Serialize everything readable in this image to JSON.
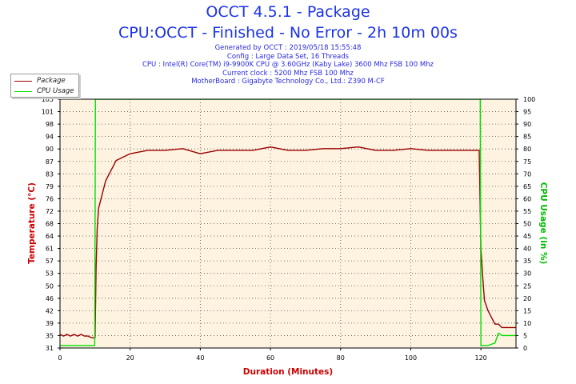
{
  "header": {
    "title": "OCCT 4.5.1 - Package",
    "subtitle": "CPU:OCCT - Finished - No Error - 2h 10m 00s",
    "info_lines": [
      "Generated by OCCT : 2019/05/18 15:55:48",
      "Config : Large Data Set, 16 Threads",
      "CPU : Intel(R) Core(TM) i9-9900K CPU @ 3.60GHz (Kaby Lake) 3600 Mhz FSB 100 Mhz",
      "Current clock : 5200 Mhz FSB 100 Mhz",
      "MotherBoard : Gigabyte Technology Co., Ltd.: Z390 M-CF"
    ]
  },
  "colors": {
    "title": "#1b33e6",
    "info": "#2a2ae0",
    "package": "#9b0000",
    "cpu_usage": "#00e000",
    "plot_bg": "#fdf3e0",
    "y_left_label": "#cc0000",
    "y_right_label": "#00bb00",
    "x_label": "#cc0000"
  },
  "chart_data": {
    "type": "line",
    "xlabel": "Duration (Minutes)",
    "ylabel_left": "Temperature (°C)",
    "ylabel_right": "CPU Usage (in %)",
    "xlim": [
      0,
      130
    ],
    "ylim_left": [
      31,
      104
    ],
    "ylim_right": [
      0,
      100
    ],
    "x_ticks": [
      "0",
      "20",
      "40",
      "60",
      "80",
      "100",
      "120"
    ],
    "y_left_ticks": [
      "31",
      "35",
      "39",
      "42",
      "46",
      "50",
      "53",
      "57",
      "61",
      "64",
      "68",
      "72",
      "76",
      "79",
      "83",
      "87",
      "90",
      "94",
      "98",
      "101",
      "105"
    ],
    "y_right_ticks": [
      "0",
      "5",
      "10",
      "15",
      "20",
      "25",
      "30",
      "35",
      "40",
      "45",
      "50",
      "55",
      "60",
      "65",
      "70",
      "75",
      "80",
      "85",
      "90",
      "95",
      "100"
    ],
    "grid": true,
    "legend_position": "top-left",
    "series": [
      {
        "name": "Package",
        "axis": "left",
        "x": [
          0,
          1,
          2,
          3,
          4,
          5,
          6,
          7,
          8,
          9,
          10,
          10.3,
          10.6,
          11,
          12,
          13,
          14,
          16,
          18,
          20,
          25,
          30,
          35,
          40,
          45,
          50,
          55,
          60,
          65,
          70,
          75,
          80,
          85,
          90,
          95,
          100,
          105,
          110,
          115,
          119.5,
          120,
          120.5,
          121,
          122,
          123,
          124,
          125,
          126,
          127,
          128,
          129,
          130
        ],
        "values": [
          35,
          34.5,
          35,
          34.5,
          35,
          34.5,
          35,
          34.5,
          34.5,
          34,
          34,
          55,
          66,
          72,
          76,
          80,
          82,
          86,
          87,
          88,
          89,
          89,
          89.5,
          88,
          89,
          89,
          89,
          90,
          89,
          89,
          89.5,
          89.5,
          90,
          89,
          89,
          89.5,
          89,
          89,
          89,
          89,
          60,
          52,
          45,
          42,
          40,
          38,
          38,
          37,
          37,
          37,
          37,
          37
        ]
      },
      {
        "name": "CPU Usage",
        "axis": "right",
        "x": [
          0,
          5,
          9.9,
          10,
          10.1,
          50,
          100,
          119.8,
          119.9,
          120,
          121,
          122,
          124,
          125,
          126,
          128,
          130
        ],
        "values": [
          1,
          1,
          1,
          50,
          100,
          100,
          100,
          100,
          50,
          1,
          1,
          1,
          2,
          6,
          5,
          5,
          5
        ]
      }
    ]
  }
}
